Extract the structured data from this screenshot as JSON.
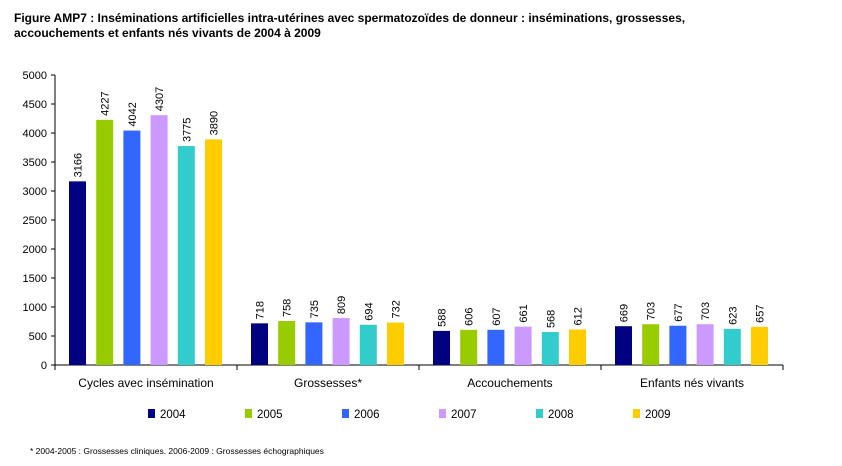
{
  "header": {
    "title_line1": "Figure AMP7 : Inséminations artificielles intra-utérines avec spermatozoïdes de donneur : inséminations, grossesses,",
    "title_line2": "accouchements et enfants nés vivants de 2004 à 2009"
  },
  "footnote": "* 2004-2005 : Grossesses cliniques. 2006-2009 : Grossesses échographiques",
  "chart_data": {
    "type": "bar",
    "title": "Figure AMP7 : Inséminations artificielles intra-utérines avec spermatozoïdes de donneur : inséminations, grossesses, accouchements et enfants nés vivants de 2004 à 2009",
    "categories": [
      "Cycles avec insémination",
      "Grossesses*",
      "Accouchements",
      "Enfants nés vivants"
    ],
    "series": [
      {
        "name": "2004",
        "color": "#000080",
        "values": [
          3166,
          718,
          588,
          669
        ]
      },
      {
        "name": "2005",
        "color": "#99CC00",
        "values": [
          4227,
          758,
          606,
          703
        ]
      },
      {
        "name": "2006",
        "color": "#3366FF",
        "values": [
          4042,
          735,
          607,
          677
        ]
      },
      {
        "name": "2007",
        "color": "#CC99FF",
        "values": [
          4307,
          809,
          661,
          703
        ]
      },
      {
        "name": "2008",
        "color": "#33CCCC",
        "values": [
          3775,
          694,
          568,
          623
        ]
      },
      {
        "name": "2009",
        "color": "#FFCC00",
        "values": [
          3890,
          732,
          612,
          657
        ]
      }
    ],
    "ylim": [
      0,
      5000
    ],
    "yticks": [
      0,
      500,
      1000,
      1500,
      2000,
      2500,
      3000,
      3500,
      4000,
      4500,
      5000
    ],
    "xlabel": "",
    "ylabel": "",
    "legend": "bottom",
    "grid": false
  }
}
